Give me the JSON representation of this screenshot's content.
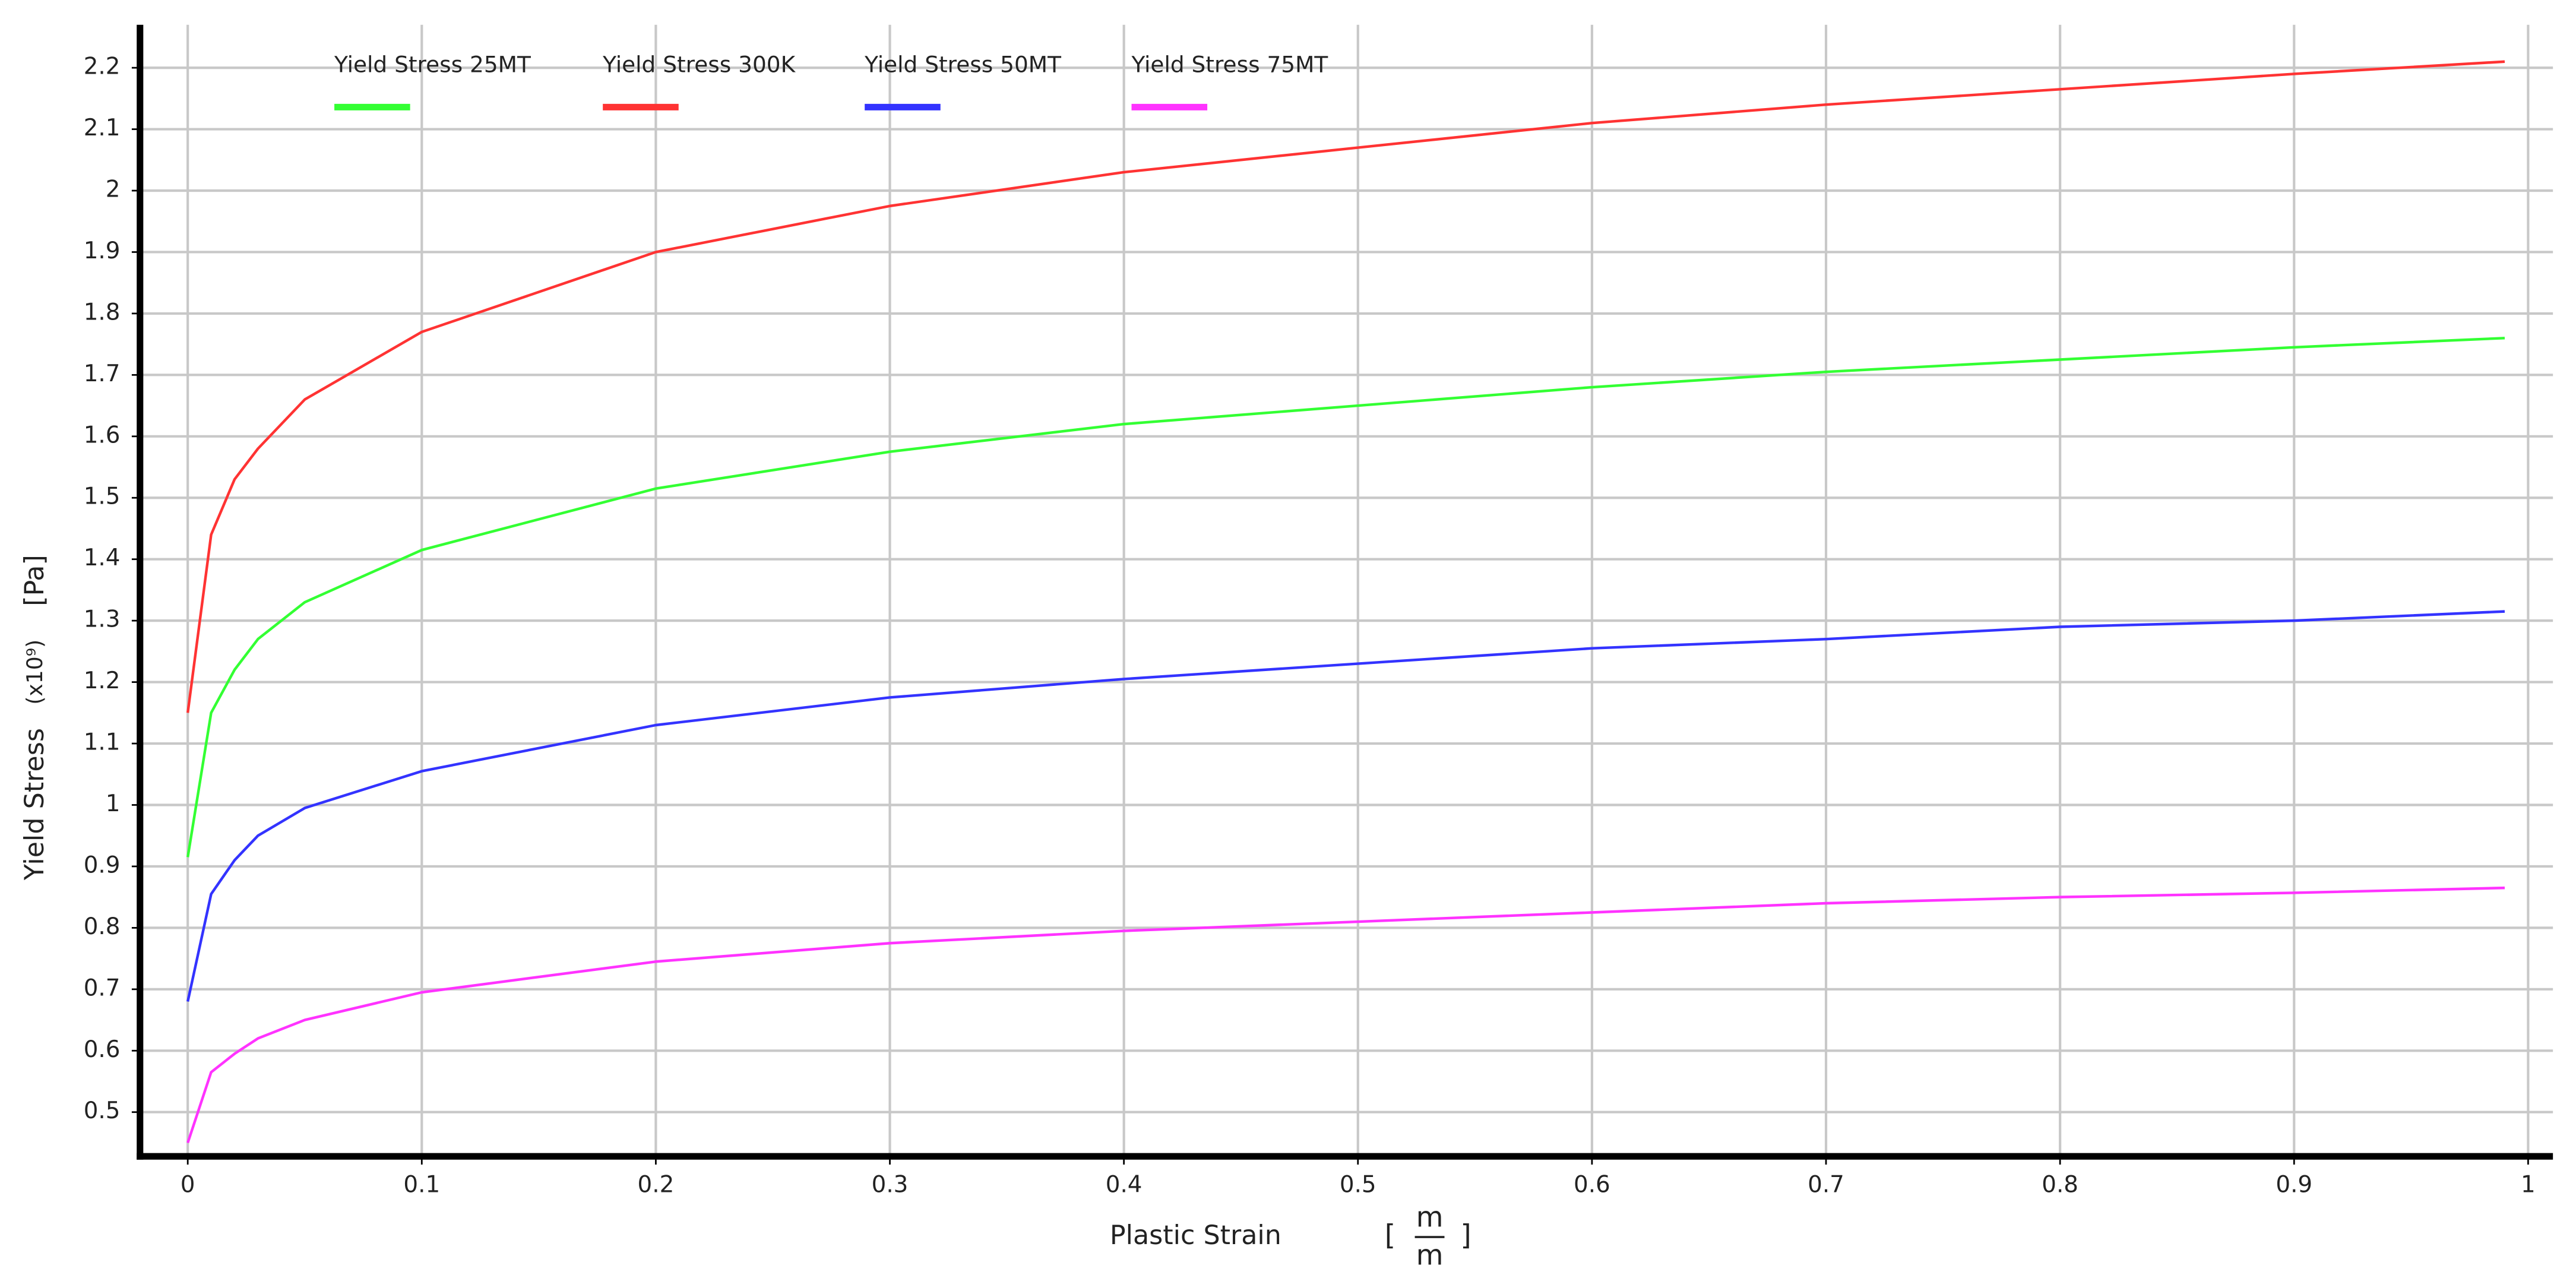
{
  "chart_data": {
    "type": "line",
    "x_label": "Plastic Strain",
    "x_unit": {
      "open": "[",
      "numerator": "m",
      "denominator": "m",
      "close": "]"
    },
    "y_label": "Yield Stress",
    "y_scale": "(x10⁹)",
    "y_unit": "[Pa]",
    "x": [
      0,
      0.01,
      0.02,
      0.03,
      0.05,
      0.1,
      0.2,
      0.3,
      0.4,
      0.5,
      0.6,
      0.7,
      0.8,
      0.9,
      0.99
    ],
    "series": [
      {
        "name": "Yield Stress 25MT",
        "color": "#33ff33",
        "values": [
          0.915,
          1.15,
          1.22,
          1.27,
          1.33,
          1.415,
          1.515,
          1.575,
          1.62,
          1.65,
          1.68,
          1.705,
          1.725,
          1.745,
          1.76
        ]
      },
      {
        "name": "Yield Stress 300K",
        "color": "#ff3333",
        "values": [
          1.15,
          1.44,
          1.53,
          1.58,
          1.66,
          1.77,
          1.9,
          1.975,
          2.03,
          2.07,
          2.11,
          2.14,
          2.165,
          2.19,
          2.21
        ]
      },
      {
        "name": "Yield Stress 50MT",
        "color": "#3333ff",
        "values": [
          0.68,
          0.855,
          0.91,
          0.95,
          0.995,
          1.055,
          1.13,
          1.175,
          1.205,
          1.23,
          1.255,
          1.27,
          1.29,
          1.3,
          1.315
        ]
      },
      {
        "name": "Yield Stress 75MT",
        "color": "#ff33ff",
        "values": [
          0.45,
          0.565,
          0.595,
          0.62,
          0.65,
          0.695,
          0.745,
          0.775,
          0.795,
          0.81,
          0.825,
          0.84,
          0.85,
          0.857,
          0.865
        ]
      }
    ],
    "xlim": [
      -0.0204,
      1.0106
    ],
    "ylim": [
      0.428,
      2.27
    ],
    "xticks": [
      0,
      0.1,
      0.2,
      0.3,
      0.4,
      0.5,
      0.6,
      0.7,
      0.8,
      0.9,
      1
    ],
    "yticks": [
      0.5,
      0.6,
      0.7,
      0.8,
      0.9,
      1,
      1.1,
      1.2,
      1.3,
      1.4,
      1.5,
      1.6,
      1.7,
      1.8,
      1.9,
      2,
      2.1,
      2.2
    ],
    "grid": true,
    "legend": "top-left"
  }
}
